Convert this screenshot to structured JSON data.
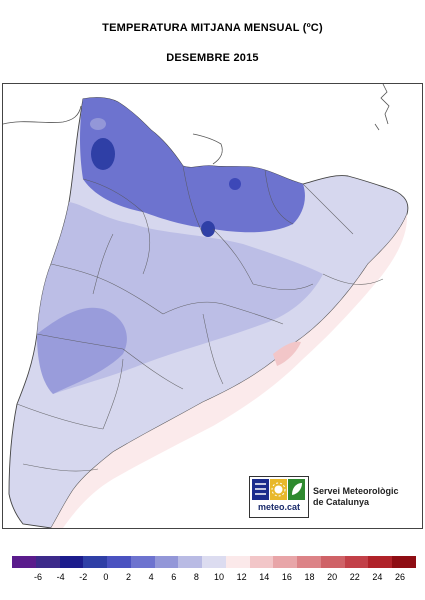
{
  "title": "TEMPERATURA MITJANA MENSUAL (ºC)",
  "subtitle": "DESEMBRE 2015",
  "logo": {
    "brand": "meteo.cat",
    "service_line1": "Servei Meteorològic",
    "service_line2": "de Catalunya",
    "icon_names": [
      "rain-icon",
      "sun-icon",
      "leaf-icon"
    ]
  },
  "legend": {
    "colors": [
      "#5a1c8c",
      "#3d2a8a",
      "#1c1c8c",
      "#2f3fa6",
      "#4a52c0",
      "#6d73cf",
      "#9397d8",
      "#b9bbe4",
      "#dcdcf0",
      "#fbe9ea",
      "#f2c6c8",
      "#e8a5a8",
      "#dc8387",
      "#cf6267",
      "#c24048",
      "#b02229",
      "#8e0d13"
    ],
    "ticks": [
      "-6",
      "-4",
      "-2",
      "0",
      "2",
      "4",
      "6",
      "8",
      "10",
      "12",
      "14",
      "16",
      "18",
      "20",
      "22",
      "24",
      "26"
    ]
  }
}
